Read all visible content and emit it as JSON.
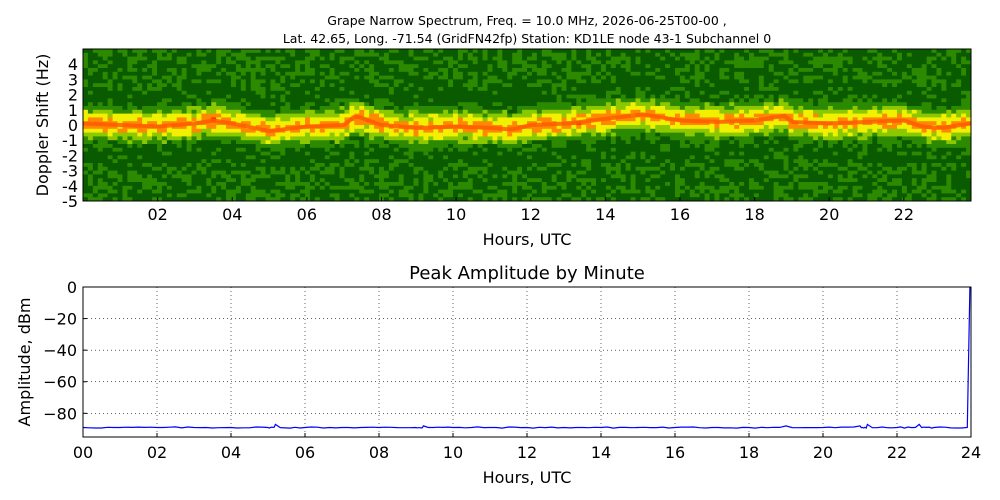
{
  "title_line1": "Grape Narrow Spectrum, Freq. = 10.0 MHz, 2026-06-25T00-00 ,",
  "title_line2": "Lat.  42.65, Long. -71.54 (GridFN42fp) Station: KD1LE node 43-1 Subchannel 0",
  "chart_data": [
    {
      "type": "heatmap",
      "title": "",
      "xlabel": "Hours, UTC",
      "ylabel": "Doppler Shift (Hz)",
      "xlim": [
        0,
        23.8
      ],
      "ylim": [
        -5,
        5
      ],
      "x_ticks": [
        "02",
        "04",
        "06",
        "08",
        "10",
        "12",
        "14",
        "16",
        "18",
        "20",
        "22"
      ],
      "y_ticks": [
        "4",
        "3",
        "2",
        "1",
        "0",
        "-1",
        "-2",
        "-3",
        "-4",
        "-5"
      ],
      "colormap": [
        "#0a5a00",
        "#2c8a00",
        "#8cc800",
        "#f0f000",
        "#ff8800",
        "#ff3000"
      ],
      "doppler_trace_hours": [
        0,
        1,
        2,
        3,
        3.5,
        4,
        5,
        6,
        7,
        7.3,
        8,
        9,
        10,
        11,
        11.5,
        12,
        13,
        14,
        15,
        16,
        17,
        18,
        18.8,
        19,
        20,
        21,
        22,
        22.5,
        23,
        23.8
      ],
      "doppler_trace_hz": [
        0.1,
        0.0,
        -0.1,
        0.1,
        0.3,
        0.1,
        -0.4,
        -0.1,
        0.0,
        0.6,
        0.0,
        -0.2,
        -0.1,
        -0.2,
        -0.3,
        0.0,
        0.1,
        0.4,
        0.7,
        0.3,
        0.2,
        0.3,
        0.6,
        0.2,
        0.1,
        0.2,
        0.3,
        -0.1,
        -0.2,
        0.1
      ],
      "grid": false
    },
    {
      "type": "line",
      "title": "Peak Amplitude by Minute",
      "xlabel": "Hours, UTC",
      "ylabel": "Amplitude, dBm",
      "xlim": [
        0,
        24
      ],
      "ylim": [
        -95,
        0
      ],
      "x_ticks": [
        "00",
        "02",
        "04",
        "06",
        "08",
        "10",
        "12",
        "14",
        "16",
        "18",
        "20",
        "22",
        "24"
      ],
      "y_ticks": [
        "0",
        "−20",
        "−40",
        "−60",
        "−80"
      ],
      "y_tick_values": [
        0,
        -20,
        -40,
        -60,
        -80
      ],
      "grid": true,
      "color": "#0000ff",
      "series": [
        {
          "x": [
            0,
            1,
            2,
            3,
            4,
            5,
            5.2,
            6,
            7,
            8,
            9,
            9.2,
            10,
            11,
            12,
            13,
            14,
            15,
            16,
            17,
            18,
            19,
            20,
            21,
            21.2,
            22,
            22.6,
            23,
            23.9,
            23.97
          ],
          "y": [
            -89,
            -89,
            -89,
            -89,
            -89,
            -89,
            -87,
            -89,
            -89,
            -89,
            -89,
            -88,
            -89,
            -89,
            -89,
            -89,
            -89,
            -89,
            -89,
            -89,
            -89,
            -88,
            -89,
            -88,
            -87,
            -89,
            -87,
            -89,
            -89,
            0
          ]
        }
      ]
    }
  ]
}
